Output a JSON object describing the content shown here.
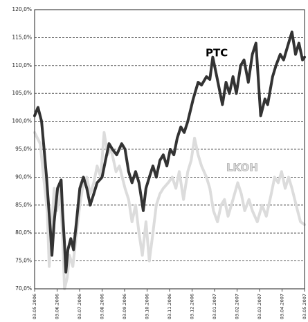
{
  "chart_data": {
    "type": "line",
    "ylim": [
      70,
      120
    ],
    "yticks": [
      {
        "value": 70,
        "label": "70,0%"
      },
      {
        "value": 75,
        "label": "75,0%"
      },
      {
        "value": 80,
        "label": "80,0%"
      },
      {
        "value": 85,
        "label": "85,0%"
      },
      {
        "value": 90,
        "label": "90,0%"
      },
      {
        "value": 95,
        "label": "95,0%"
      },
      {
        "value": 100,
        "label": "100,0%"
      },
      {
        "value": 105,
        "label": "105,0%"
      },
      {
        "value": 110,
        "label": "110,0%"
      },
      {
        "value": 115,
        "label": "115,0%"
      },
      {
        "value": 120,
        "label": "120,0%"
      }
    ],
    "xlim": [
      0,
      12
    ],
    "xticks": [
      {
        "value": 0,
        "label": "03.05.2006"
      },
      {
        "value": 1,
        "label": "03.06.2006"
      },
      {
        "value": 2,
        "label": "03.07.2006"
      },
      {
        "value": 3,
        "label": "03.08.2006"
      },
      {
        "value": 4,
        "label": "03.09.2006"
      },
      {
        "value": 5,
        "label": "03.10.2006"
      },
      {
        "value": 6,
        "label": "03.11.2006"
      },
      {
        "value": 7,
        "label": "03.12.2006"
      },
      {
        "value": 8,
        "label": "03.01.2007"
      },
      {
        "value": 9,
        "label": "03.02.2007"
      },
      {
        "value": 10,
        "label": "03.03.2007"
      },
      {
        "value": 11,
        "label": "03.04.2007"
      },
      {
        "value": 12,
        "label": "03.05.2007"
      }
    ],
    "grid": true,
    "series": [
      {
        "name": "LKOH",
        "color": "#dcdcdc",
        "x": [
          0,
          0.25,
          0.4,
          0.56,
          0.65,
          0.74,
          0.87,
          0.99,
          1.11,
          1.24,
          1.33,
          1.45,
          1.55,
          1.7,
          1.86,
          2.01,
          2.17,
          2.32,
          2.47,
          2.63,
          2.78,
          2.94,
          3.09,
          3.25,
          3.4,
          3.62,
          3.77,
          4.02,
          4.18,
          4.33,
          4.49,
          4.64,
          4.79,
          4.95,
          5.1,
          5.26,
          5.41,
          5.57,
          5.72,
          5.94,
          6.12,
          6.28,
          6.43,
          6.62,
          6.81,
          6.96,
          7.11,
          7.27,
          7.42,
          7.64,
          7.79,
          7.95,
          8.13,
          8.29,
          8.44,
          8.6,
          8.82,
          9.03,
          9.19,
          9.34,
          9.53,
          9.68,
          9.9,
          10.11,
          10.3,
          10.52,
          10.67,
          10.83,
          10.98,
          11.14,
          11.29,
          11.44,
          11.69,
          11.82,
          12.0
        ],
        "values": [
          98,
          96,
          90,
          84,
          74,
          80,
          88,
          84,
          88,
          80,
          70,
          72,
          76,
          74,
          80,
          85,
          89,
          90,
          87,
          89,
          92,
          90,
          98,
          94,
          95,
          91,
          92,
          88,
          86,
          82,
          85,
          80,
          76,
          82,
          75,
          80,
          85,
          87,
          88,
          89,
          90,
          88,
          91,
          86,
          91,
          93,
          97,
          94,
          92,
          90,
          88,
          84,
          82,
          85,
          86,
          83,
          86,
          89,
          87,
          84,
          86,
          84,
          82,
          85,
          83,
          87,
          90,
          89,
          91,
          88,
          90,
          88,
          84,
          82,
          81.5
        ]
      },
      {
        "name": "PTC",
        "color": "#333333",
        "x": [
          0,
          0.15,
          0.31,
          0.4,
          0.53,
          0.62,
          0.71,
          0.77,
          0.87,
          1.02,
          1.18,
          1.24,
          1.33,
          1.39,
          1.48,
          1.61,
          1.73,
          1.86,
          2.01,
          2.17,
          2.32,
          2.47,
          2.63,
          2.78,
          3.0,
          3.15,
          3.31,
          3.46,
          3.65,
          3.87,
          4.02,
          4.18,
          4.33,
          4.49,
          4.64,
          4.83,
          4.95,
          5.1,
          5.26,
          5.41,
          5.57,
          5.72,
          5.88,
          6.03,
          6.19,
          6.34,
          6.5,
          6.65,
          6.81,
          7.05,
          7.27,
          7.42,
          7.64,
          7.79,
          7.92,
          8.1,
          8.35,
          8.51,
          8.66,
          8.82,
          8.97,
          9.16,
          9.31,
          9.5,
          9.68,
          9.84,
          10.05,
          10.24,
          10.36,
          10.58,
          10.73,
          10.92,
          11.07,
          11.29,
          11.44,
          11.6,
          11.75,
          11.91,
          12.0
        ],
        "values": [
          101,
          102.5,
          100,
          96,
          90,
          85,
          80,
          76,
          82,
          88,
          89.5,
          84,
          78,
          73,
          77,
          79,
          77,
          82,
          88,
          90,
          88,
          85,
          87,
          89,
          90,
          93,
          96,
          95,
          94,
          96,
          95,
          91,
          89,
          91,
          89,
          84,
          88,
          90,
          92,
          90,
          93,
          94,
          92,
          95,
          94,
          97,
          99,
          98,
          100,
          104,
          107,
          106.5,
          108,
          107.5,
          111.5,
          108,
          103,
          107,
          105,
          108,
          105,
          110,
          111,
          107,
          112,
          114,
          101,
          104,
          103,
          108,
          110,
          112,
          111,
          114,
          116,
          112,
          114,
          111,
          111.5
        ]
      }
    ]
  }
}
